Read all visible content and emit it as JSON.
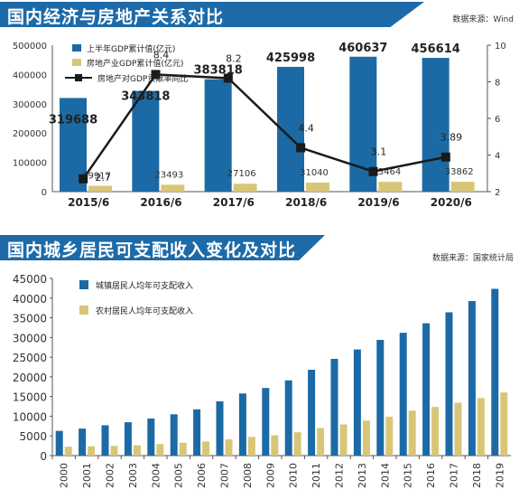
{
  "colors": {
    "header": "#1d6aa8",
    "bar_blue": "#1b6aa5",
    "bar_gold": "#d8c678",
    "line": "#1a1a1a"
  },
  "chart_data": [
    {
      "type": "bar",
      "title": "国内经济与房地产关系对比",
      "source": "数据来源：Wind",
      "categories": [
        "2015/6",
        "2016/6",
        "2017/6",
        "2018/6",
        "2019/6",
        "2020/6"
      ],
      "series": [
        {
          "name": "上半年GDP累计值(亿元)",
          "type": "bar",
          "axis": "left",
          "values": [
            319688,
            343818,
            383818,
            425998,
            460637,
            456614
          ]
        },
        {
          "name": "房地产业GDP累计值(亿元)",
          "type": "bar",
          "axis": "left",
          "values": [
            19917,
            23493,
            27106,
            31040,
            33464,
            33862
          ]
        },
        {
          "name": "房地产对GDP贡献率同比",
          "type": "line",
          "axis": "right",
          "values": [
            2.7,
            8.4,
            8.2,
            4.4,
            3.1,
            3.89
          ]
        }
      ],
      "yticks": [
        0,
        100000,
        200000,
        300000,
        400000,
        500000
      ],
      "ylim": [
        0,
        500000
      ],
      "y2ticks": [
        2,
        4,
        6,
        8,
        10
      ],
      "y2lim": [
        2,
        10
      ],
      "legend": "top-left",
      "grid": false
    },
    {
      "type": "bar",
      "title": "国内城乡居民可支配收入变化及对比",
      "source": "数据来源：国家统计局",
      "categories": [
        "2000",
        "2001",
        "2002",
        "2003",
        "2004",
        "2005",
        "2006",
        "2007",
        "2008",
        "2009",
        "2010",
        "2011",
        "2012",
        "2013",
        "2014",
        "2015",
        "2016",
        "2017",
        "2018",
        "2019"
      ],
      "series": [
        {
          "name": "城镇居民人均年可支配收入",
          "values": [
            6280,
            6860,
            7703,
            8472,
            9422,
            10493,
            11759,
            13786,
            15781,
            17175,
            19109,
            21810,
            24565,
            26955,
            29381,
            31195,
            33616,
            36396,
            39251,
            42359
          ]
        },
        {
          "name": "农村居民人均年可支配收入",
          "values": [
            2253,
            2366,
            2476,
            2622,
            2936,
            3255,
            3587,
            4140,
            4761,
            5153,
            5919,
            6977,
            7917,
            8896,
            9892,
            11422,
            12363,
            13432,
            14617,
            16021
          ]
        }
      ],
      "yticks": [
        0,
        5000,
        10000,
        15000,
        20000,
        25000,
        30000,
        35000,
        40000,
        45000
      ],
      "ylim": [
        0,
        45000
      ],
      "legend": "top-left",
      "grid": false
    }
  ]
}
